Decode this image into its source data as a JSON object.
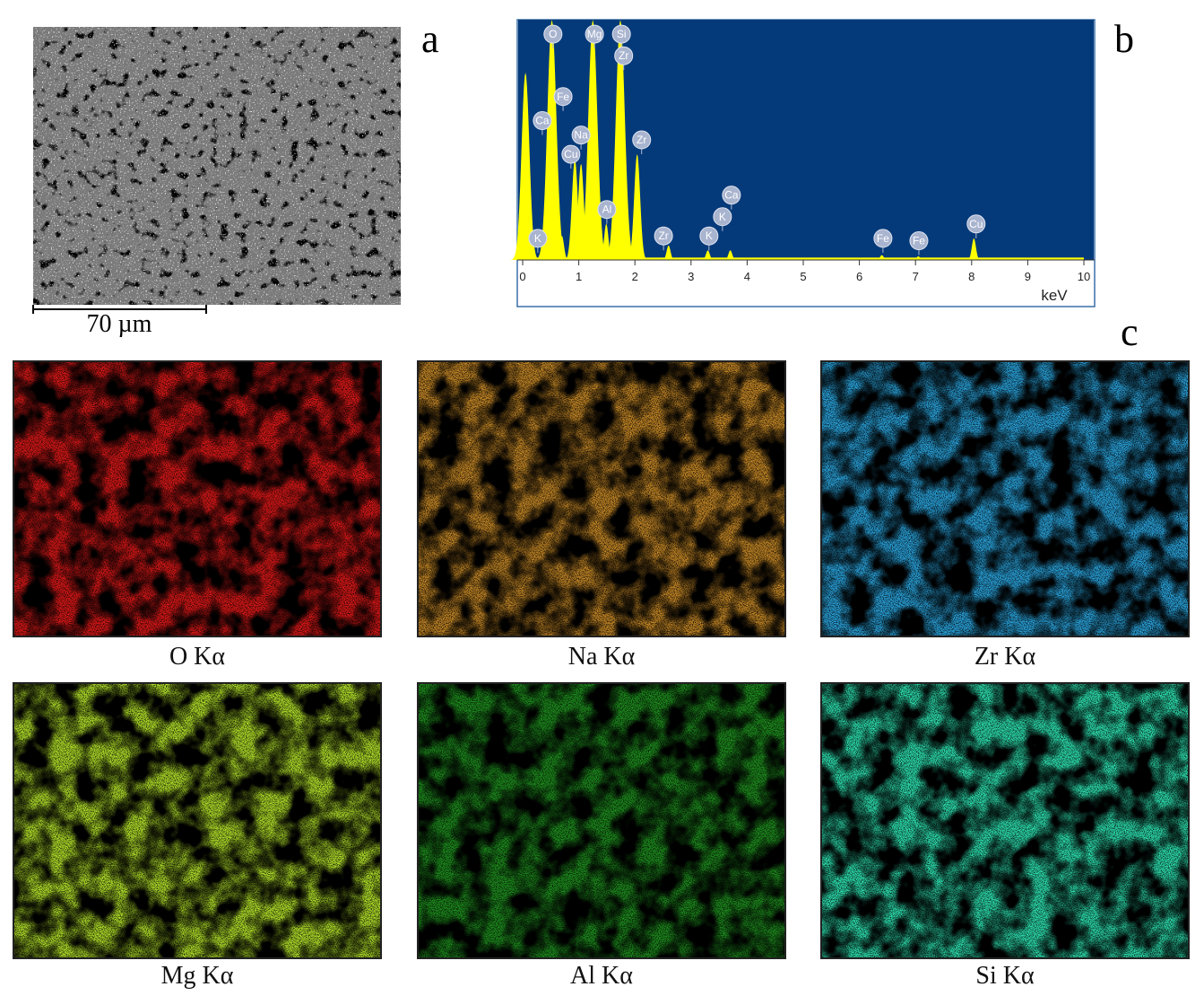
{
  "panel_labels": [
    "a",
    "b",
    "c"
  ],
  "sem": {
    "scale_bar": "70 µm"
  },
  "spectrum": {
    "xlim": [
      0,
      10
    ],
    "xticks": [
      0,
      1,
      2,
      3,
      4,
      5,
      6,
      7,
      8,
      9,
      10
    ],
    "x_label": "keV",
    "ylim": [
      0,
      100
    ],
    "fill": "#ffff00",
    "background": "#053a7a",
    "peaks": [
      {
        "energy": 0.05,
        "height": 78
      },
      {
        "energy": 0.52,
        "height": 100
      },
      {
        "energy": 0.7,
        "height": 10
      },
      {
        "energy": 0.93,
        "height": 42
      },
      {
        "energy": 1.04,
        "height": 40
      },
      {
        "energy": 1.25,
        "height": 100
      },
      {
        "energy": 1.49,
        "height": 15
      },
      {
        "energy": 1.74,
        "height": 100
      },
      {
        "energy": 2.04,
        "height": 44
      },
      {
        "energy": 2.6,
        "height": 6
      },
      {
        "energy": 3.3,
        "height": 4
      },
      {
        "energy": 3.7,
        "height": 4
      },
      {
        "energy": 6.4,
        "height": 2
      },
      {
        "energy": 7.05,
        "height": 1.5
      },
      {
        "energy": 8.04,
        "height": 9
      }
    ],
    "labels": [
      {
        "text": "O",
        "energy": 0.54,
        "height": 94
      },
      {
        "text": "Mg",
        "energy": 1.28,
        "height": 94
      },
      {
        "text": "Si",
        "energy": 1.76,
        "height": 94
      },
      {
        "text": "Zr",
        "energy": 1.8,
        "height": 85
      },
      {
        "text": "Fe",
        "energy": 0.72,
        "height": 68
      },
      {
        "text": "Ca",
        "energy": 0.35,
        "height": 58
      },
      {
        "text": "Na",
        "energy": 1.04,
        "height": 52
      },
      {
        "text": "Cu",
        "energy": 0.86,
        "height": 44
      },
      {
        "text": "Zr",
        "energy": 2.12,
        "height": 50
      },
      {
        "text": "Ca",
        "energy": 3.72,
        "height": 27
      },
      {
        "text": "K",
        "energy": 3.56,
        "height": 18
      },
      {
        "text": "Al",
        "energy": 1.5,
        "height": 21
      },
      {
        "text": "Cu",
        "energy": 8.08,
        "height": 15
      },
      {
        "text": "Zr",
        "energy": 2.51,
        "height": 10
      },
      {
        "text": "K",
        "energy": 3.32,
        "height": 10
      },
      {
        "text": "K",
        "energy": 0.27,
        "height": 9
      },
      {
        "text": "Fe",
        "energy": 6.42,
        "height": 9
      },
      {
        "text": "Fe",
        "energy": 7.06,
        "height": 8
      }
    ]
  },
  "maps": [
    {
      "label": "O Kα",
      "color": "#e01818"
    },
    {
      "label": "Na Kα",
      "color": "#c98a26"
    },
    {
      "label": "Zr Kα",
      "color": "#2aa6e0"
    },
    {
      "label": "Mg Kα",
      "color": "#b6e62a"
    },
    {
      "label": "Al Kα",
      "color": "#1e901e"
    },
    {
      "label": "Si Kα",
      "color": "#2ee6b4"
    }
  ]
}
